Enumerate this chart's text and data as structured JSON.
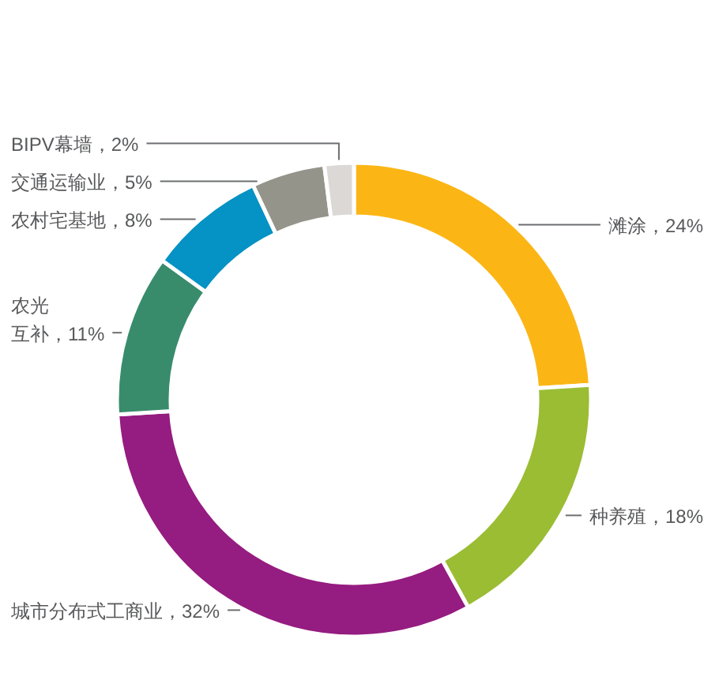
{
  "chart_data": {
    "type": "donut",
    "categories": [
      "滩涂",
      "种养殖",
      "城市分布式工商业",
      "农光互补",
      "农村宅基地",
      "交通运输业",
      "BIPV幕墙"
    ],
    "values": [
      24,
      18,
      32,
      11,
      8,
      5,
      2
    ],
    "colors": [
      "#fbb616",
      "#9abd34",
      "#951c80",
      "#388c6c",
      "#0592c4",
      "#95948a",
      "#dcd8d6"
    ],
    "value_labels": [
      "24%",
      "18%",
      "32%",
      "11%",
      "8%",
      "5%",
      "2%"
    ]
  }
}
